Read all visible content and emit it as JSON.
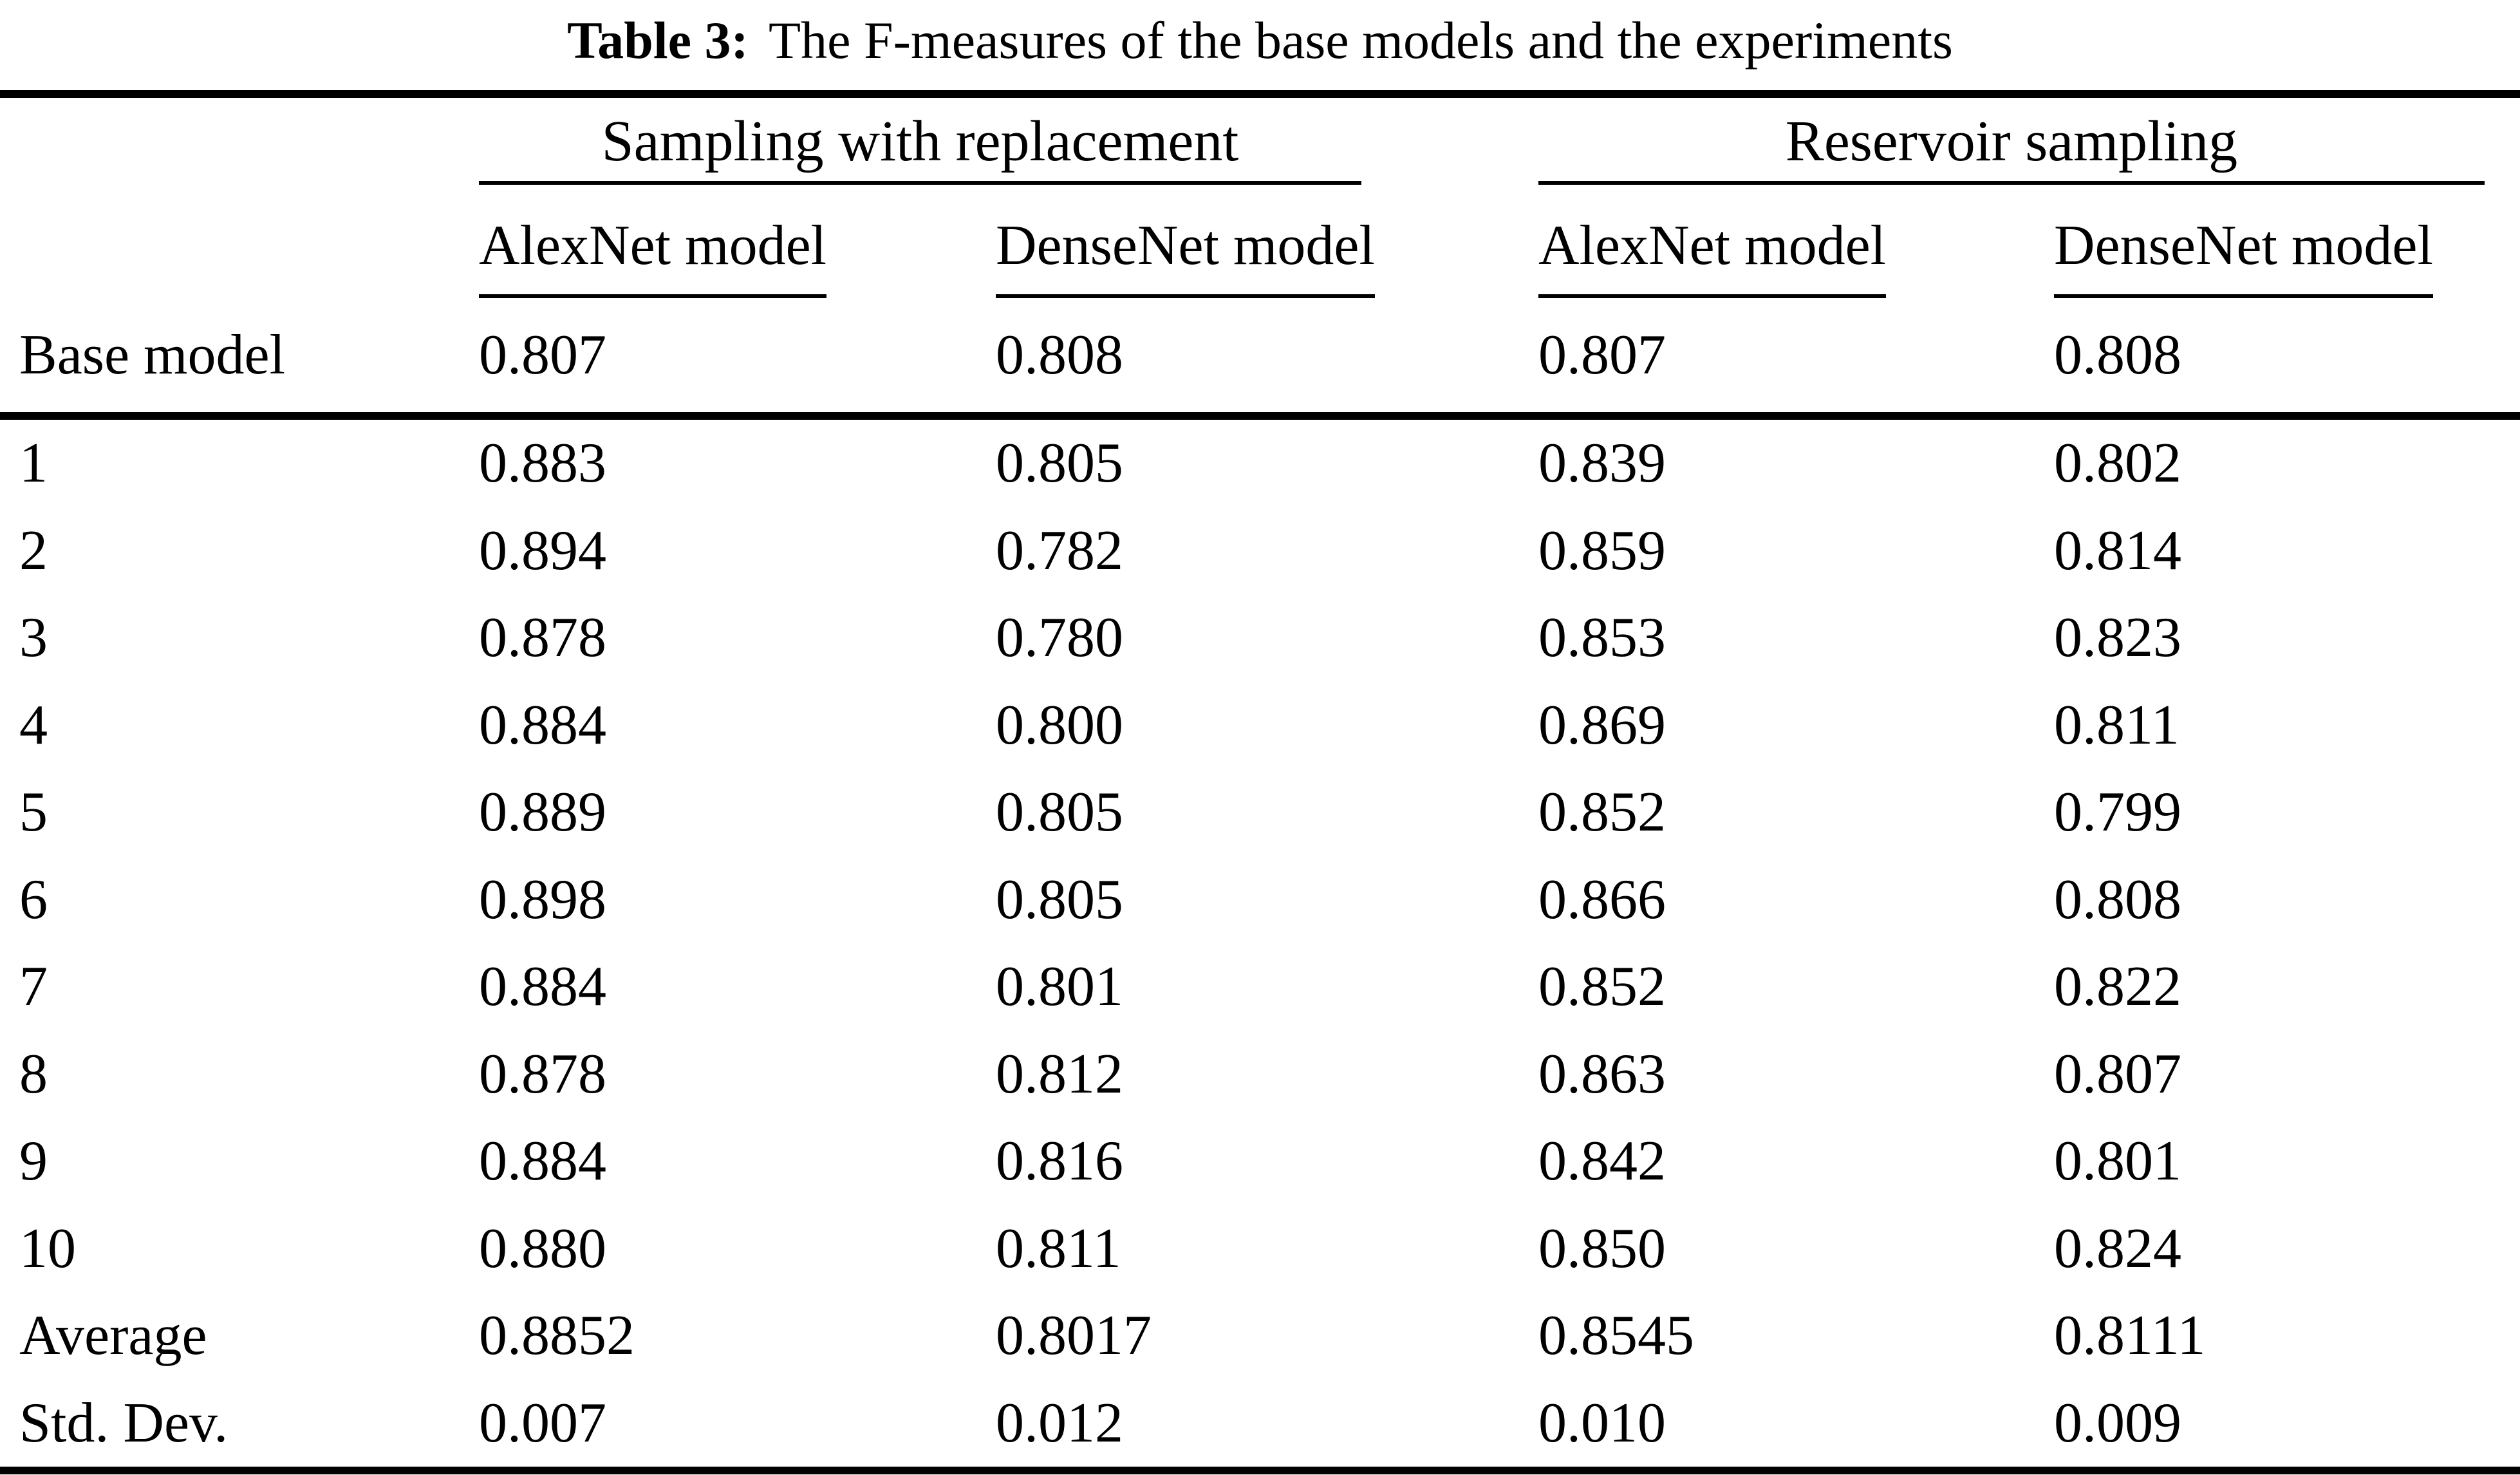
{
  "caption": {
    "label": "Table 3:",
    "text": "The F-measures of the base models and the experiments"
  },
  "table": {
    "group_headers": [
      "Sampling with replacement",
      "Reservoir sampling"
    ],
    "col_headers": [
      "AlexNet model",
      "DenseNet model",
      "AlexNet model",
      "DenseNet model"
    ],
    "base_row": {
      "label": "Base model",
      "values": [
        "0.807",
        "0.808",
        "0.807",
        "0.808"
      ]
    },
    "rows": [
      {
        "label": "1",
        "values": [
          "0.883",
          "0.805",
          "0.839",
          "0.802"
        ]
      },
      {
        "label": "2",
        "values": [
          "0.894",
          "0.782",
          "0.859",
          "0.814"
        ]
      },
      {
        "label": "3",
        "values": [
          "0.878",
          "0.780",
          "0.853",
          "0.823"
        ]
      },
      {
        "label": "4",
        "values": [
          "0.884",
          "0.800",
          "0.869",
          "0.811"
        ]
      },
      {
        "label": "5",
        "values": [
          "0.889",
          "0.805",
          "0.852",
          "0.799"
        ]
      },
      {
        "label": "6",
        "values": [
          "0.898",
          "0.805",
          "0.866",
          "0.808"
        ]
      },
      {
        "label": "7",
        "values": [
          "0.884",
          "0.801",
          "0.852",
          "0.822"
        ]
      },
      {
        "label": "8",
        "values": [
          "0.878",
          "0.812",
          "0.863",
          "0.807"
        ]
      },
      {
        "label": "9",
        "values": [
          "0.884",
          "0.816",
          "0.842",
          "0.801"
        ]
      },
      {
        "label": "10",
        "values": [
          "0.880",
          "0.811",
          "0.850",
          "0.824"
        ]
      },
      {
        "label": "Average",
        "values": [
          "0.8852",
          "0.8017",
          "0.8545",
          "0.8111"
        ]
      },
      {
        "label": "Std. Dev.",
        "values": [
          "0.007",
          "0.012",
          "0.010",
          "0.009"
        ]
      }
    ]
  }
}
